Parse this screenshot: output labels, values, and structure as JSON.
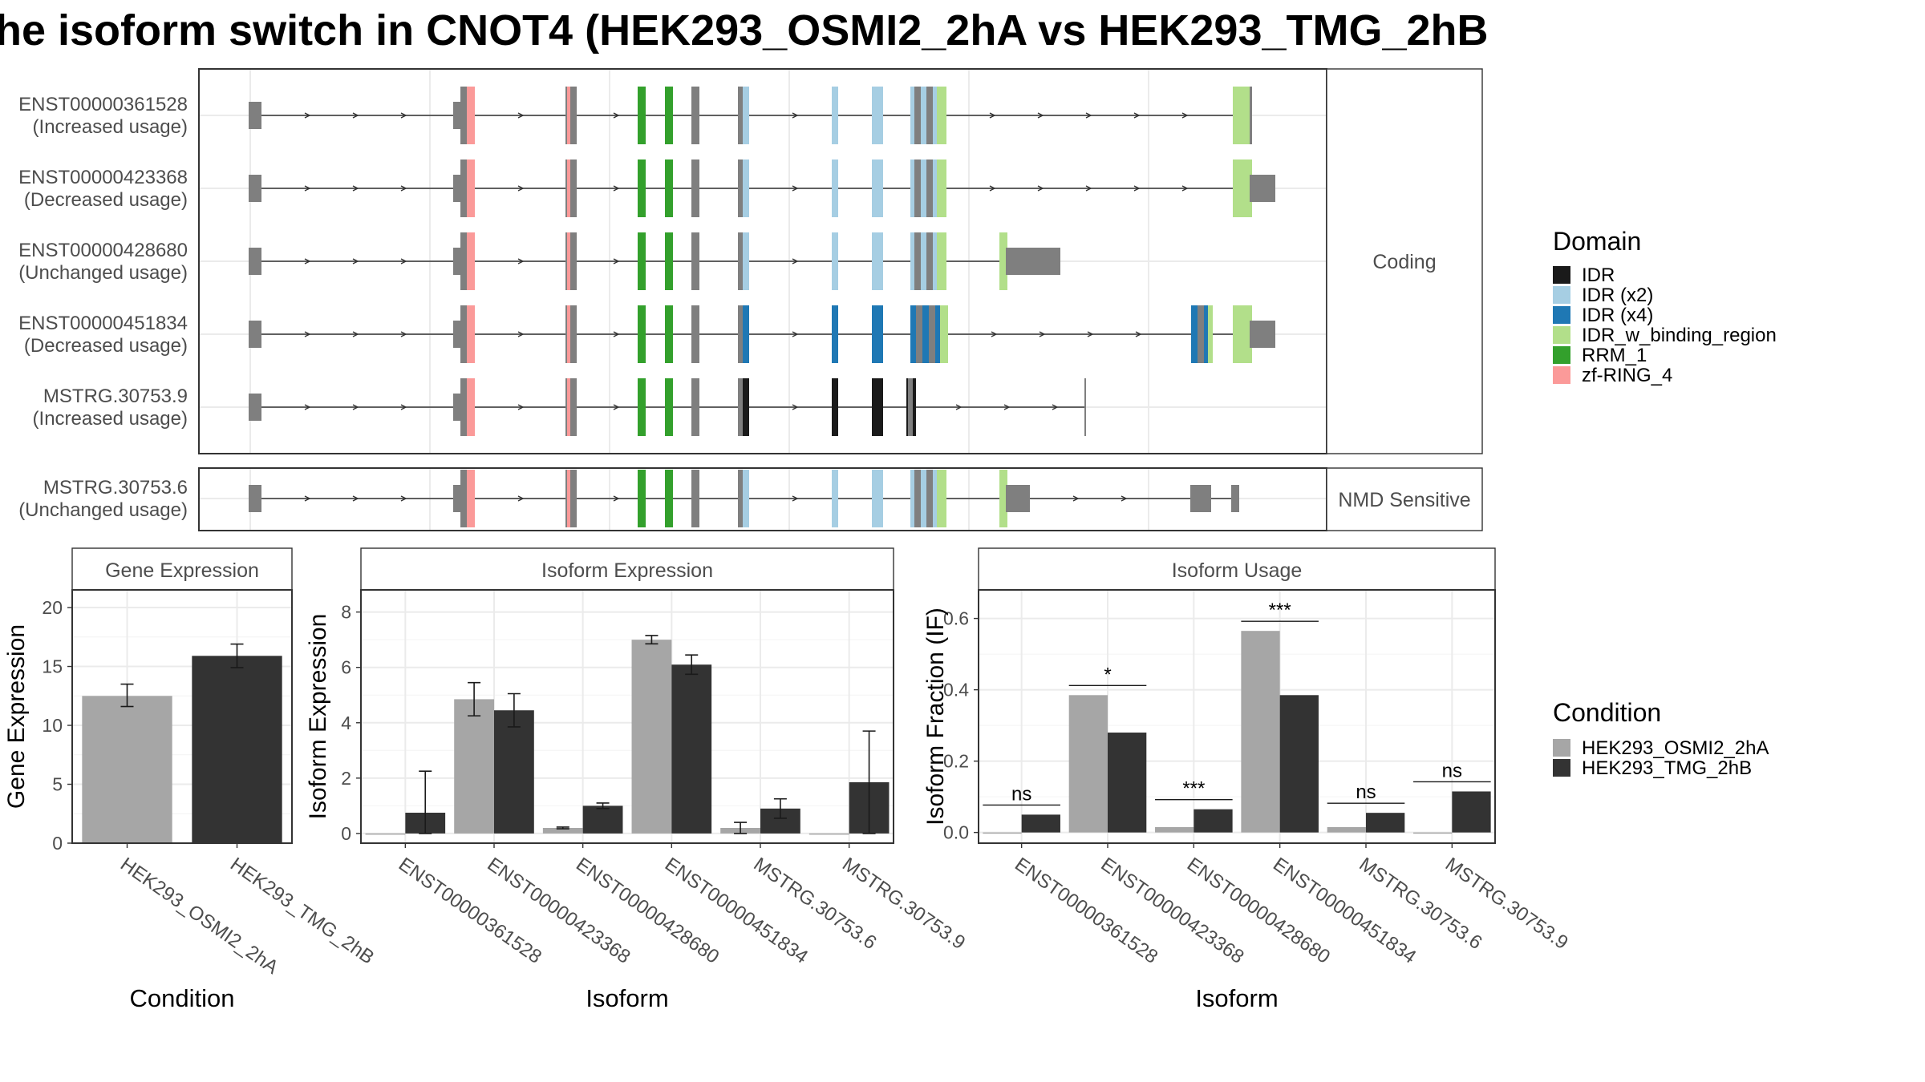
{
  "title": "he isoform switch in CNOT4 (HEK293_OSMI2_2hA vs HEK293_TMG_2hB",
  "colors": {
    "IDR": "#1a1a1a",
    "IDR (x2)": "#a6cee3",
    "IDR (x4)": "#1f78b4",
    "IDR_w_binding_region": "#b2df8a",
    "RRM_1": "#33a02c",
    "zf-RING_4": "#fb9a99",
    "exon": "#7f7f7f",
    "cond_a": "#a6a6a6",
    "cond_b": "#333333"
  },
  "structure": {
    "facets": [
      "Coding",
      "NMD Sensitive"
    ],
    "tracks": [
      {
        "id": "ENST00000361528",
        "usage": "(Increased usage)",
        "facet": 0
      },
      {
        "id": "ENST00000423368",
        "usage": "(Decreased usage)",
        "facet": 0
      },
      {
        "id": "ENST00000428680",
        "usage": "(Unchanged usage)",
        "facet": 0
      },
      {
        "id": "ENST00000451834",
        "usage": "(Decreased usage)",
        "facet": 0
      },
      {
        "id": "MSTRG.30753.9",
        "usage": "(Increased usage)",
        "facet": 0
      },
      {
        "id": "MSTRG.30753.6",
        "usage": "(Unchanged usage)",
        "facet": 1
      }
    ]
  },
  "legend_domain": {
    "title": "Domain",
    "items": [
      "IDR",
      "IDR (x2)",
      "IDR (x4)",
      "IDR_w_binding_region",
      "RRM_1",
      "zf-RING_4"
    ]
  },
  "legend_condition": {
    "title": "Condition",
    "items": [
      "HEK293_OSMI2_2hA",
      "HEK293_TMG_2hB"
    ]
  },
  "chart_data": [
    {
      "type": "bar",
      "title": "Gene Expression",
      "xlabel": "Condition",
      "ylabel": "Gene Expression",
      "categories": [
        "HEK293_OSMI2_2hA",
        "HEK293_TMG_2hB"
      ],
      "values": [
        12.5,
        15.9
      ],
      "errors": [
        [
          11.6,
          13.5
        ],
        [
          14.9,
          16.9
        ]
      ],
      "ylim": [
        0,
        21.5
      ],
      "yticks": [
        0,
        5,
        10,
        15,
        20
      ]
    },
    {
      "type": "bar",
      "title": "Isoform Expression",
      "xlabel": "Isoform",
      "ylabel": "Isoform Expression",
      "categories": [
        "ENST00000361528",
        "ENST00000423368",
        "ENST00000428680",
        "ENST00000451834",
        "MSTRG.30753.6",
        "MSTRG.30753.9"
      ],
      "series": [
        {
          "name": "HEK293_OSMI2_2hA",
          "values": [
            0,
            4.85,
            0.2,
            7.0,
            0.2,
            0
          ],
          "errors": [
            null,
            [
              4.25,
              5.45
            ],
            [
              0.17,
              0.23
            ],
            [
              6.85,
              7.15
            ],
            [
              0.0,
              0.4
            ],
            null
          ]
        },
        {
          "name": "HEK293_TMG_2hB",
          "values": [
            0.75,
            4.45,
            1.0,
            6.1,
            0.9,
            1.85
          ],
          "errors": [
            [
              0,
              2.25
            ],
            [
              3.85,
              5.05
            ],
            [
              0.9,
              1.1
            ],
            [
              5.75,
              6.45
            ],
            [
              0.55,
              1.25
            ],
            [
              0,
              3.7
            ]
          ]
        }
      ],
      "ylim": [
        -0.35,
        8.8
      ],
      "yticks": [
        0,
        2,
        4,
        6,
        8
      ]
    },
    {
      "type": "bar",
      "title": "Isoform Usage",
      "xlabel": "Isoform",
      "ylabel": "Isoform Fraction (IF)",
      "categories": [
        "ENST00000361528",
        "ENST00000423368",
        "ENST00000428680",
        "ENST00000451834",
        "MSTRG.30753.6",
        "MSTRG.30753.9"
      ],
      "series": [
        {
          "name": "HEK293_OSMI2_2hA",
          "values": [
            0,
            0.385,
            0.015,
            0.565,
            0.015,
            0
          ]
        },
        {
          "name": "HEK293_TMG_2hB",
          "values": [
            0.05,
            0.28,
            0.065,
            0.385,
            0.055,
            0.115
          ]
        }
      ],
      "significance": [
        "ns",
        "*",
        "***",
        "***",
        "ns",
        "ns"
      ],
      "ylim": [
        -0.03,
        0.68
      ],
      "yticks": [
        0.0,
        0.2,
        0.4,
        0.6
      ]
    }
  ]
}
